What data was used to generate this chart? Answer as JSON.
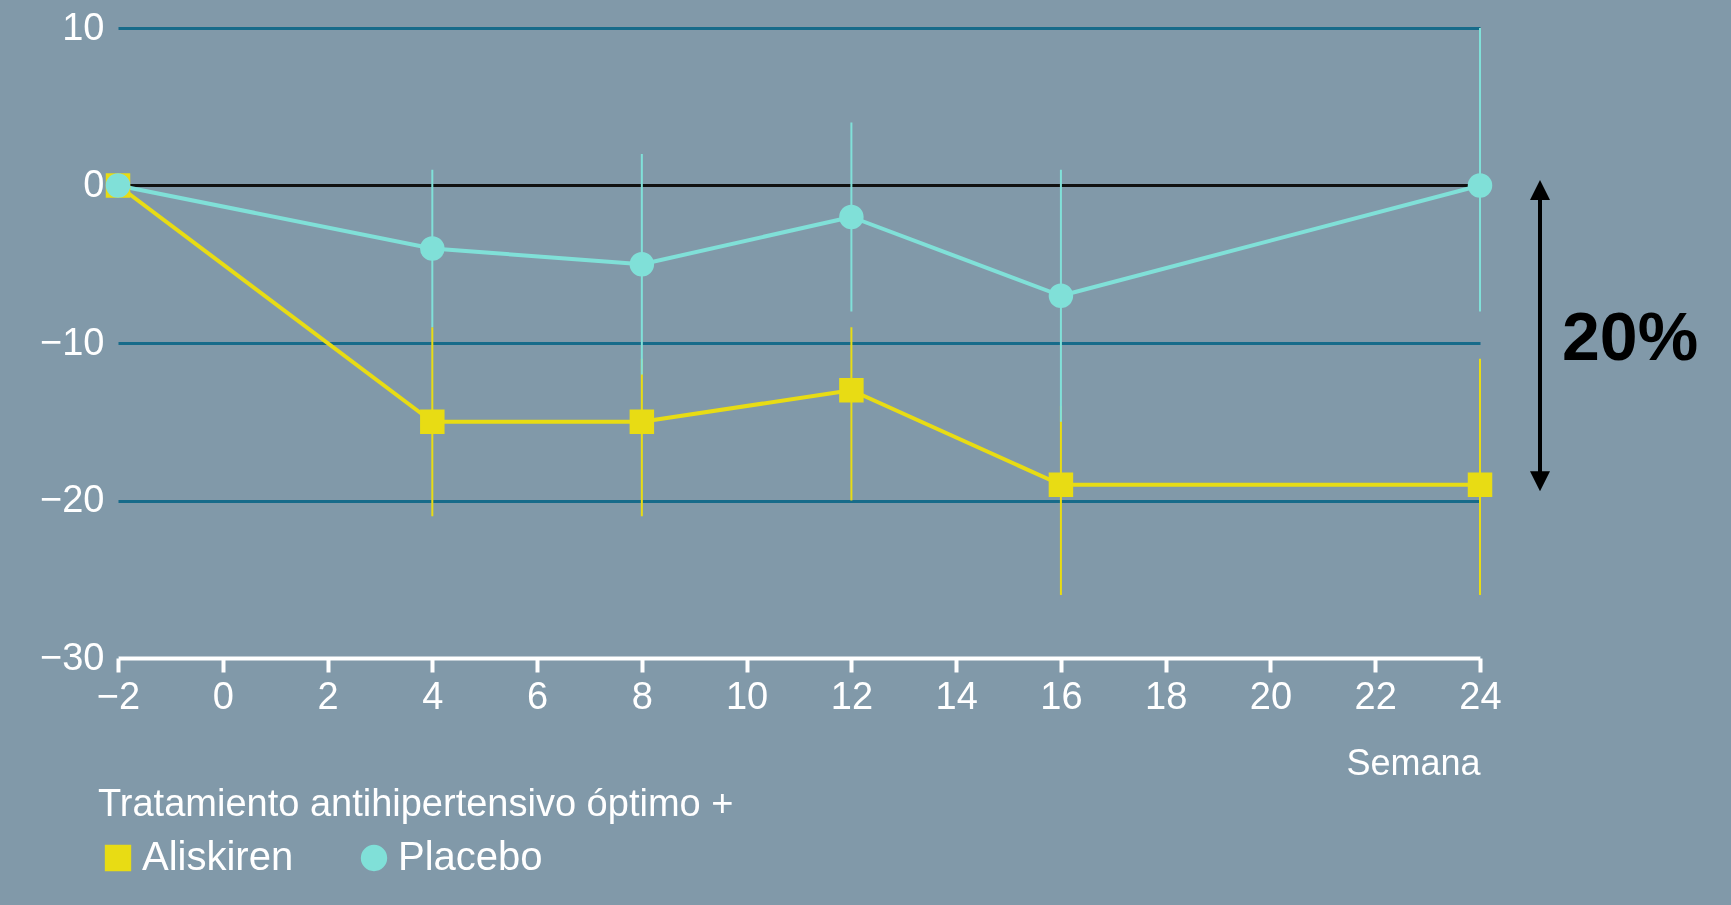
{
  "chart_data": {
    "type": "line",
    "xlabel": "Semana",
    "legend_title": "Tratamiento antihipertensivo óptimo +",
    "x": [
      -2,
      4,
      8,
      12,
      16,
      24
    ],
    "series": [
      {
        "name": "Aliskiren",
        "color": "#e8dc14",
        "marker": "square",
        "values": [
          0,
          -15,
          -15,
          -13,
          -19,
          -19
        ],
        "errors": [
          null,
          [
            -21,
            -9
          ],
          [
            -21,
            -11
          ],
          [
            -20,
            -9
          ],
          [
            -26,
            -14
          ],
          [
            -26,
            -11
          ]
        ]
      },
      {
        "name": "Placebo",
        "color": "#80e0d8",
        "marker": "circle",
        "values": [
          0,
          -4,
          -5,
          -2,
          -7,
          0
        ],
        "errors": [
          null,
          [
            -9,
            1
          ],
          [
            -12,
            2
          ],
          [
            -8,
            4
          ],
          [
            -15,
            1
          ],
          [
            -8,
            10
          ]
        ]
      }
    ],
    "xlim": [
      -2,
      24
    ],
    "xticks": [
      {
        "value": -2,
        "label": "−2"
      },
      0,
      2,
      4,
      6,
      8,
      10,
      12,
      14,
      16,
      18,
      20,
      22,
      24
    ],
    "ylim": [
      -30,
      10
    ],
    "yticks": [
      {
        "value": -30,
        "label": "−30"
      },
      {
        "value": -20,
        "label": "−20"
      },
      {
        "value": -10,
        "label": "−10"
      },
      0,
      10
    ],
    "grid": "y",
    "legend": "bottom left",
    "ref_lines": [
      {
        "axis": "y",
        "value": 0,
        "color": "#111111"
      }
    ],
    "annotations": [
      "20%"
    ]
  }
}
